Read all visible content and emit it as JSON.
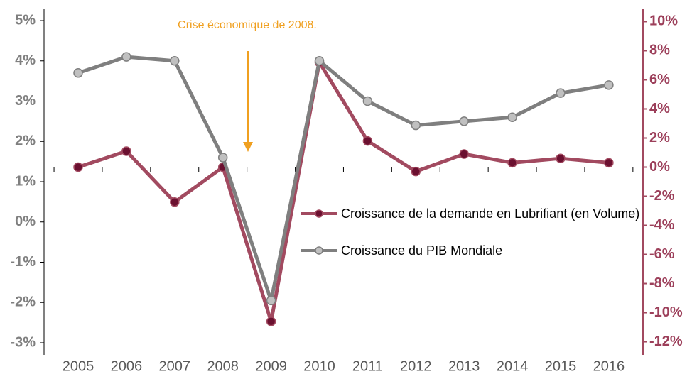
{
  "chart_data": {
    "type": "line",
    "annotation": "Crise économique de 2008.",
    "categories": [
      "2005",
      "2006",
      "2007",
      "2008",
      "2009",
      "2010",
      "2011",
      "2012",
      "2013",
      "2014",
      "2015",
      "2016"
    ],
    "series": [
      {
        "name": "Croissance de la demande en Lubrifiant (en Volume)",
        "color": "#a24a60",
        "marker_color": "#6b1030",
        "axis": "y2",
        "values": [
          0,
          1.1,
          -2.4,
          0,
          -10.6,
          7.2,
          1.8,
          -0.3,
          0.9,
          0.3,
          0.6,
          0.3
        ]
      },
      {
        "name": "Croissance du PIB Mondiale",
        "color": "#7f7f7f",
        "marker_color": "#c0c0c0",
        "axis": "y",
        "values": [
          3.7,
          4.1,
          4.0,
          1.6,
          -1.95,
          4.0,
          3.0,
          2.4,
          2.5,
          2.6,
          3.2,
          3.4
        ]
      }
    ],
    "ylim": [
      -3.3,
      5.3
    ],
    "yticks": [
      {
        "value": 5,
        "label": "5%"
      },
      {
        "value": 4,
        "label": "4%"
      },
      {
        "value": 3,
        "label": "3%"
      },
      {
        "value": 2,
        "label": "2%"
      },
      {
        "value": 1,
        "label": "1%"
      },
      {
        "value": 0,
        "label": "0%"
      },
      {
        "value": -1,
        "label": "-1%"
      },
      {
        "value": -2,
        "label": "-2%"
      },
      {
        "value": -3,
        "label": "-3%"
      }
    ],
    "y2lim": [
      -12.9,
      10.9
    ],
    "y2ticks": [
      {
        "value": 10,
        "label": "10%"
      },
      {
        "value": 8,
        "label": "8%"
      },
      {
        "value": 6,
        "label": "6%"
      },
      {
        "value": 4,
        "label": "4%"
      },
      {
        "value": 2,
        "label": "2%"
      },
      {
        "value": 0,
        "label": "0%"
      },
      {
        "value": -2,
        "label": "-2%"
      },
      {
        "value": -4,
        "label": "-4%"
      },
      {
        "value": -6,
        "label": "-6%"
      },
      {
        "value": -8,
        "label": "-8%"
      },
      {
        "value": -10,
        "label": "-10%"
      },
      {
        "value": -12,
        "label": "-12%"
      }
    ],
    "grid": false
  }
}
